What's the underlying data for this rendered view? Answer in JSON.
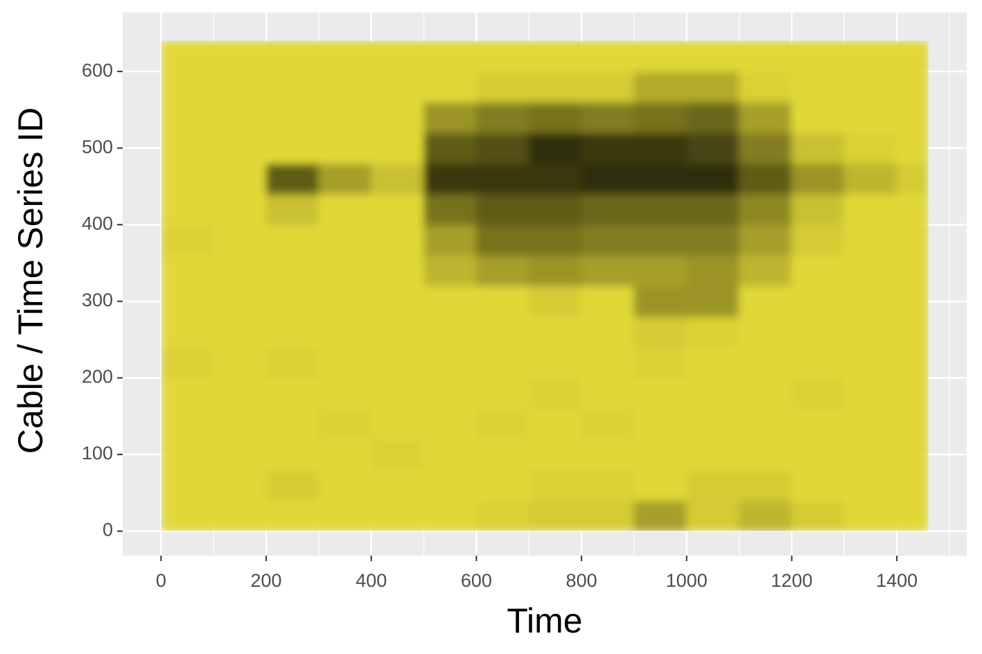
{
  "chart_data": {
    "type": "heatmap",
    "x_label": "Time",
    "y_label": "Cable / Time Series ID",
    "xlim": [
      -73,
      1533
    ],
    "ylim": [
      -32,
      677
    ],
    "xticks": [
      0,
      200,
      400,
      600,
      800,
      1000,
      1200,
      1400
    ],
    "yticks": [
      0,
      100,
      200,
      300,
      400,
      500,
      600
    ],
    "x_minor": [
      100,
      300,
      500,
      700,
      900,
      1100,
      1300,
      1500
    ],
    "y_minor": [
      100,
      300,
      500
    ],
    "grid": true,
    "colors": [
      "#ede33b",
      "#000000"
    ],
    "x": [
      0,
      100,
      200,
      300,
      400,
      500,
      600,
      700,
      800,
      900,
      1000,
      1100,
      1200,
      1300,
      1400,
      1460
    ],
    "y": [
      0,
      40,
      80,
      120,
      160,
      200,
      240,
      280,
      320,
      360,
      400,
      440,
      480,
      520,
      560,
      600,
      640
    ],
    "values": [
      [
        0.05,
        0.05,
        0.05,
        0.05,
        0.05,
        0.05,
        0.08,
        0.1,
        0.1,
        0.3,
        0.1,
        0.2,
        0.1,
        0.05,
        0.05
      ],
      [
        0.05,
        0.05,
        0.1,
        0.05,
        0.05,
        0.05,
        0.05,
        0.08,
        0.08,
        0.05,
        0.1,
        0.1,
        0.05,
        0.05,
        0.05
      ],
      [
        0.05,
        0.05,
        0.05,
        0.05,
        0.08,
        0.05,
        0.05,
        0.05,
        0.05,
        0.05,
        0.05,
        0.05,
        0.05,
        0.05,
        0.05
      ],
      [
        0.05,
        0.05,
        0.05,
        0.08,
        0.05,
        0.05,
        0.08,
        0.05,
        0.08,
        0.05,
        0.05,
        0.05,
        0.05,
        0.05,
        0.05
      ],
      [
        0.05,
        0.05,
        0.05,
        0.05,
        0.05,
        0.05,
        0.05,
        0.08,
        0.05,
        0.05,
        0.05,
        0.05,
        0.08,
        0.05,
        0.05
      ],
      [
        0.08,
        0.05,
        0.08,
        0.05,
        0.05,
        0.05,
        0.05,
        0.05,
        0.05,
        0.08,
        0.05,
        0.05,
        0.05,
        0.05,
        0.05
      ],
      [
        0.05,
        0.05,
        0.05,
        0.05,
        0.05,
        0.05,
        0.05,
        0.05,
        0.05,
        0.1,
        0.08,
        0.05,
        0.05,
        0.05,
        0.05
      ],
      [
        0.05,
        0.05,
        0.05,
        0.05,
        0.05,
        0.05,
        0.05,
        0.1,
        0.05,
        0.35,
        0.35,
        0.05,
        0.05,
        0.05,
        0.05
      ],
      [
        0.05,
        0.05,
        0.05,
        0.05,
        0.05,
        0.2,
        0.3,
        0.35,
        0.3,
        0.3,
        0.35,
        0.2,
        0.05,
        0.05,
        0.05
      ],
      [
        0.08,
        0.05,
        0.05,
        0.05,
        0.05,
        0.3,
        0.5,
        0.5,
        0.45,
        0.45,
        0.45,
        0.3,
        0.1,
        0.05,
        0.05
      ],
      [
        0.05,
        0.05,
        0.15,
        0.05,
        0.05,
        0.5,
        0.6,
        0.6,
        0.55,
        0.55,
        0.55,
        0.4,
        0.15,
        0.05,
        0.05
      ],
      [
        0.05,
        0.05,
        0.6,
        0.3,
        0.15,
        0.75,
        0.75,
        0.75,
        0.8,
        0.8,
        0.8,
        0.6,
        0.35,
        0.2,
        0.1
      ],
      [
        0.05,
        0.05,
        0.05,
        0.05,
        0.05,
        0.6,
        0.65,
        0.8,
        0.75,
        0.75,
        0.7,
        0.45,
        0.15,
        0.08,
        0.05
      ],
      [
        0.05,
        0.05,
        0.05,
        0.05,
        0.05,
        0.35,
        0.45,
        0.5,
        0.45,
        0.5,
        0.55,
        0.3,
        0.05,
        0.05,
        0.05
      ],
      [
        0.05,
        0.05,
        0.05,
        0.05,
        0.05,
        0.05,
        0.1,
        0.1,
        0.1,
        0.25,
        0.25,
        0.08,
        0.05,
        0.05,
        0.05
      ],
      [
        0.05,
        0.05,
        0.05,
        0.05,
        0.05,
        0.05,
        0.05,
        0.05,
        0.05,
        0.05,
        0.05,
        0.05,
        0.05,
        0.05,
        0.05
      ]
    ]
  }
}
